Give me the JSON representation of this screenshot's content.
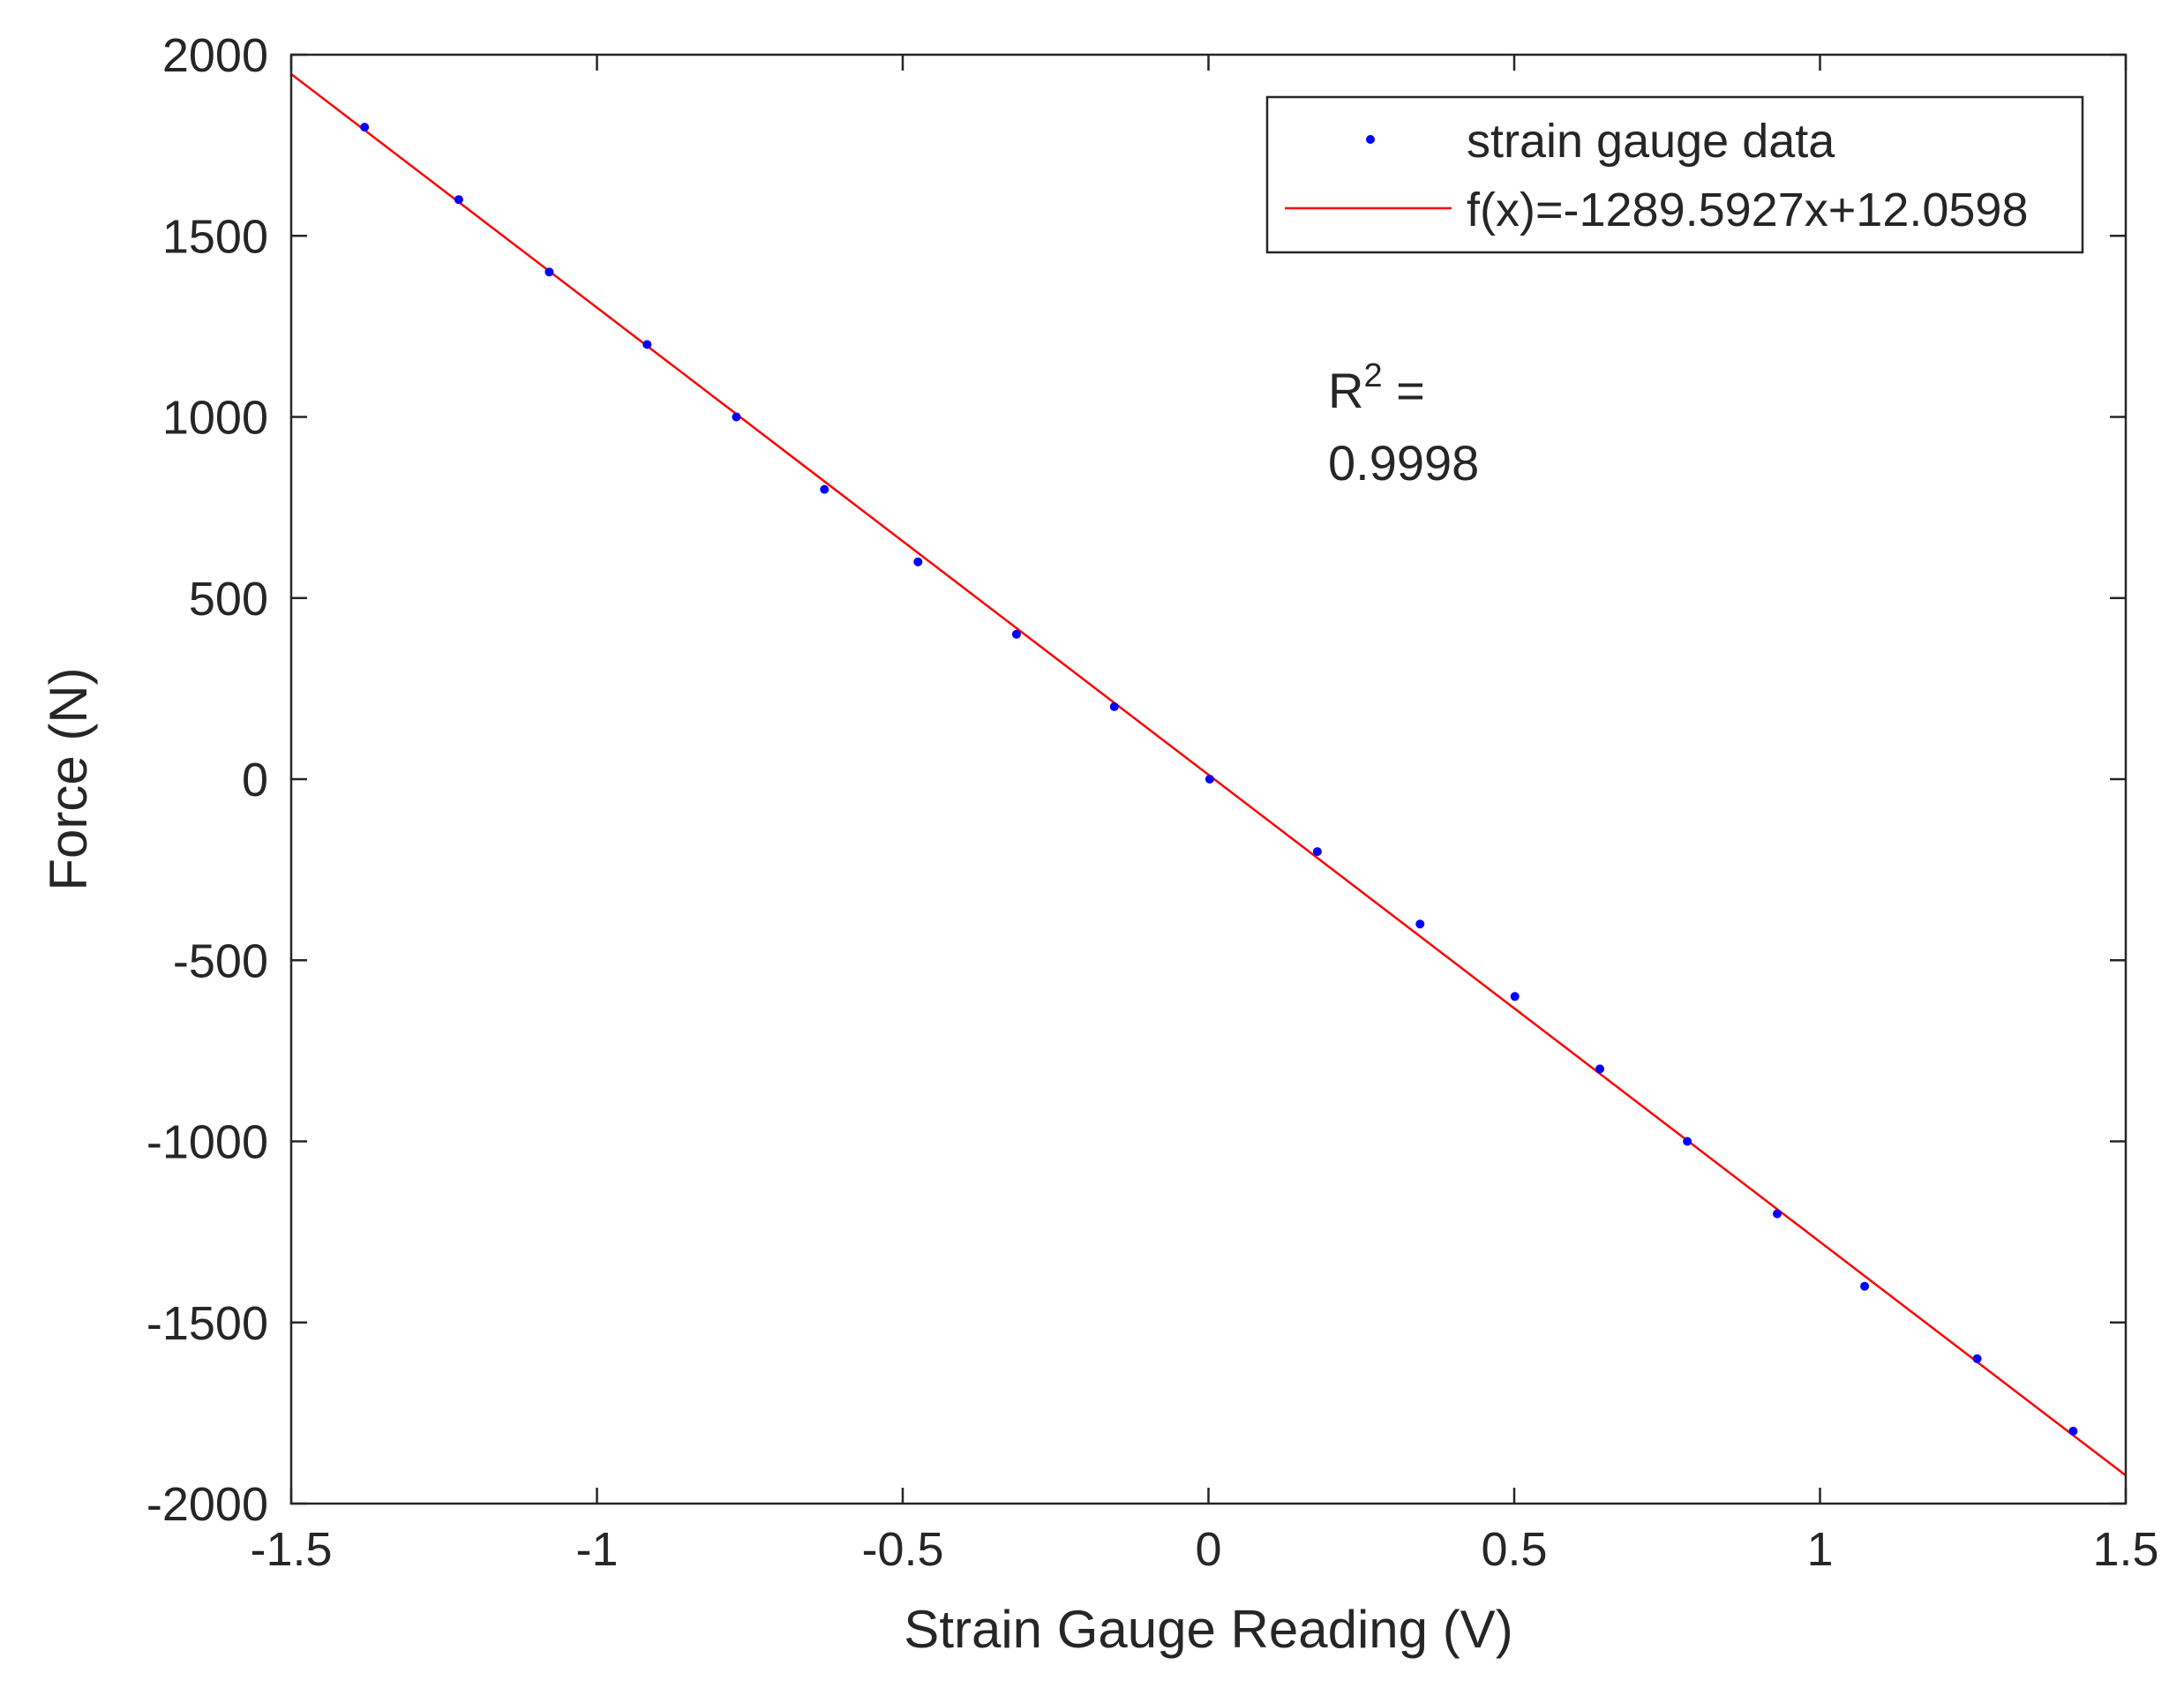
{
  "chart_data": {
    "type": "scatter",
    "xlabel": "Strain Gauge Reading (V)",
    "ylabel": "Force (N)",
    "xlim": [
      -1.5,
      1.5
    ],
    "ylim": [
      -2000,
      2000
    ],
    "xticks": [
      -1.5,
      -1,
      -0.5,
      0,
      0.5,
      1,
      1.5
    ],
    "xtick_labels": [
      "-1.5",
      "-1",
      "-0.5",
      "0",
      "0.5",
      "1",
      "1.5"
    ],
    "yticks": [
      -2000,
      -1500,
      -1000,
      -500,
      0,
      500,
      1000,
      1500,
      2000
    ],
    "ytick_labels": [
      "-2000",
      "-1500",
      "-1000",
      "-500",
      "0",
      "500",
      "1000",
      "1500",
      "2000"
    ],
    "grid": false,
    "legend_position": "top-right",
    "series": [
      {
        "name": "strain gauge data",
        "kind": "points",
        "color": "#0000ff",
        "x": [
          -1.38,
          -1.226,
          -1.078,
          -0.918,
          -0.772,
          -0.628,
          -0.475,
          -0.314,
          -0.154,
          0.002,
          0.178,
          0.346,
          0.501,
          0.64,
          0.783,
          0.93,
          1.073,
          1.257,
          1.414
        ],
        "y": [
          1800,
          1600,
          1400,
          1200,
          1000,
          800,
          600,
          400,
          200,
          0,
          -200,
          -400,
          -600,
          -800,
          -1000,
          -1200,
          -1400,
          -1600,
          -1800
        ]
      },
      {
        "name": "f(x)=-1289.5927x+12.0598",
        "kind": "line",
        "color": "#ff0000",
        "slope": -1289.5927,
        "intercept": 12.0598,
        "x_range": [
          -1.5,
          1.5
        ]
      }
    ],
    "annotations": {
      "r2_label": "R",
      "r2_superscript": "2",
      "r2_equals": " =",
      "r2_value": "0.9998"
    }
  }
}
